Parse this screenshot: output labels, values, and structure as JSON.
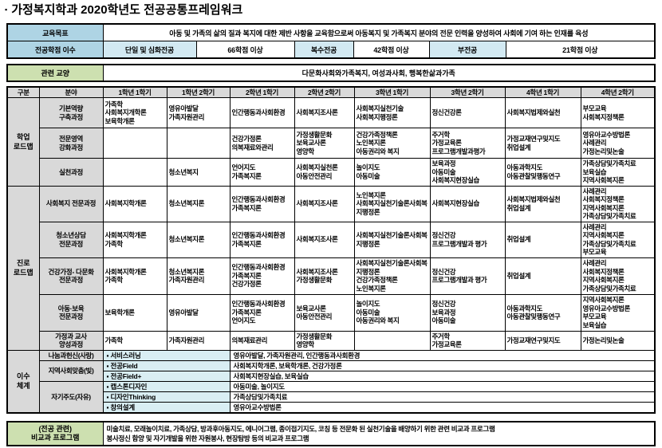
{
  "title": {
    "bullet": "▪",
    "text": "가정복지학과 2020학년도 전공공통프레임워크"
  },
  "info": {
    "goal_label": "교육목표",
    "goal_text": "아동 및 가족의 삶의 질과 복지에 대한 제반 사항을 교육함으로써 아동복지 및 가족복지 분야의 전문 인력을 양성하여 사회에 기여 하는 인재를 육성",
    "credits_label": "전공학점 이수",
    "credits": [
      {
        "type": "단일 및 심화전공",
        "value": "66학점 이상"
      },
      {
        "type": "복수전공",
        "value": "42학점 이상"
      },
      {
        "type": "부전공",
        "value": "21학점 이상"
      }
    ],
    "liberal_label": "관련 교양",
    "liberal_text": "다문화사회와가족복지, 여성과사회, 행복한삶과가족"
  },
  "main_table": {
    "headers": [
      "구분",
      "분야",
      "1학년 1학기",
      "1학년 2학기",
      "2학년 1학기",
      "2학년 2학기",
      "3학년 1학기",
      "3학년 2학기",
      "4학년 1학기",
      "4학년 2학기"
    ],
    "groups": [
      {
        "label": "학업\n로드맵",
        "rows": [
          {
            "area": "기본역량\n구축과정",
            "cells": [
              "가족학\n사회복지개학론\n보육학개론",
              "영유아발달\n가족자원관리",
              "인간행동과사회환경",
              "사회복지조사론",
              "사회복지실천기술\n사회복지행정론",
              "정신건강론",
              "사회복지법제와실천",
              "부모교육\n사회복지정책론"
            ]
          },
          {
            "area": "전문영역\n강화과정",
            "cells": [
              "",
              "",
              "건강가정론\n의복재료와관리",
              "가정생활문화\n보육교사론\n영양학",
              "건강가족정책론\n노인복지론\n아동권리와 복지",
              "주거학\n가정교육론\n프로그램개발과평가",
              "가정교재연구및지도\n취업설계",
              "영유아교수방법론\n사례관리\n가정논리및논술"
            ]
          },
          {
            "area": "실천과정",
            "cells": [
              "",
              "청소년복지",
              "언어지도\n가족복지론",
              "사회복지실천론\n아동안전관리",
              "놀이지도\n아동미술",
              "보육과정\n아동미술\n사회복지현장실습",
              "아동과학지도\n아동관찰및행동연구",
              "가족상담및가족치료\n보육실습\n지역사회복지론"
            ]
          }
        ]
      },
      {
        "label": "진로\n로드맵",
        "rows": [
          {
            "area": "사회복지 전문과정",
            "cells": [
              "사회복지학개론",
              "청소년복지론",
              "인간행동과사회환경\n가족복지론",
              "사회복지조사론",
              "노인복지론\n사회복지실천기술론사회복지행정론",
              "사회복지현장실습",
              "사회복지법제와실천\n취업설계",
              "사례관리\n사회복지정책론\n지역사회복지론\n가족상담및가족치료"
            ]
          },
          {
            "area": "청소년상담\n전문과정",
            "cells": [
              "사회복지학개론\n가족학",
              "청소년복지론",
              "인간행동과사회환경\n가족복지론",
              "사회복지조사론",
              "사회복지실천기술론사회복지행정론",
              "정신건강\n프로그램개발과 평가",
              "취업설계",
              "사례관리\n지역사회복지론\n가족상담및가족치료\n부모교육"
            ]
          },
          {
            "area": "건강가정- 다문화\n전문과정",
            "cells": [
              "사회복지학개론\n가족학",
              "청소년복지론\n가족자원관리",
              "인간행동과사회환경\n가족복지론\n건강가정론",
              "사회복지조사론\n가정생활문화",
              "사회복지실천기술론사회복지행정론\n건강가족정책론\n노인복지론",
              "정신건강\n프로그램개발과 평가",
              "취업설계",
              "사례관리\n사회복지정책론\n지역사회복지론\n가족상담및가족치료"
            ]
          },
          {
            "area": "아동·보육\n전문과정",
            "cells": [
              "보육학개론",
              "영유아발달",
              "인간행동과사회환경\n가족복지론\n언어지도",
              "보육교사론\n아동안전관리",
              "놀이지도\n아동미술\n아동권리와 복지",
              "정신건강\n보육과정\n아동미술",
              "아동과학지도\n아동관찰및행동연구",
              "지역사회복지론\n영유아교수방법론\n부모교육\n보육실습"
            ]
          },
          {
            "area": "가정과 교사\n양성과정",
            "cells": [
              "가족학",
              "가족자원관리",
              "의복재료관리",
              "가정생활문화\n영양학",
              "",
              "주거학\n가정교육론",
              "가정교재연구및지도",
              "가정논리및논술"
            ]
          }
        ]
      }
    ],
    "completion": {
      "group": "이수\n체계",
      "rows": [
        {
          "category": "나눔과헌신(사랑)",
          "span": 1,
          "program": "▪ 서비스러닝",
          "courses": "영유아발달, 가족자원관리, 인간행동과사회환경"
        },
        {
          "category": "지역사회맞춤(빛)",
          "span": 2,
          "program": "▪ 전공Field",
          "courses": "사회복지학개론, 보육학개론, 건강가정론"
        },
        {
          "program": "▪ 전공Field+",
          "courses": "사회복지현장실습, 보육실습"
        },
        {
          "category": "자기주도(자유)",
          "span": 3,
          "program": "▪ 캡스톤디자인",
          "courses": "아동미술, 놀이지도"
        },
        {
          "program": "▪ 디자인Thinking",
          "courses": "가족상담및가족치료"
        },
        {
          "program": "▪ 창의설계",
          "courses": "영유아교수방법론"
        }
      ]
    }
  },
  "extra": {
    "label": "(전공 관련)\n비교과 프로그램",
    "text": "미술치료, 모래놀이치료, 가족상담, 방과후아동지도, 에니어그램, 종이접기지도, 코칭 등 전문화 된 실천기술을 배양하기 위한 관련 비교과 프로그램\n봉사정신 함양 및 자기개발을 위한 자원봉사, 현장탐방 등의 비교과 프로그램"
  },
  "colors": {
    "label_blue": "#aed4e4",
    "cell_blue": "#d2e9f2",
    "label_green": "#cde0b0",
    "header_gray": "#d9d9d9",
    "program_cyan": "#d9eef3"
  }
}
